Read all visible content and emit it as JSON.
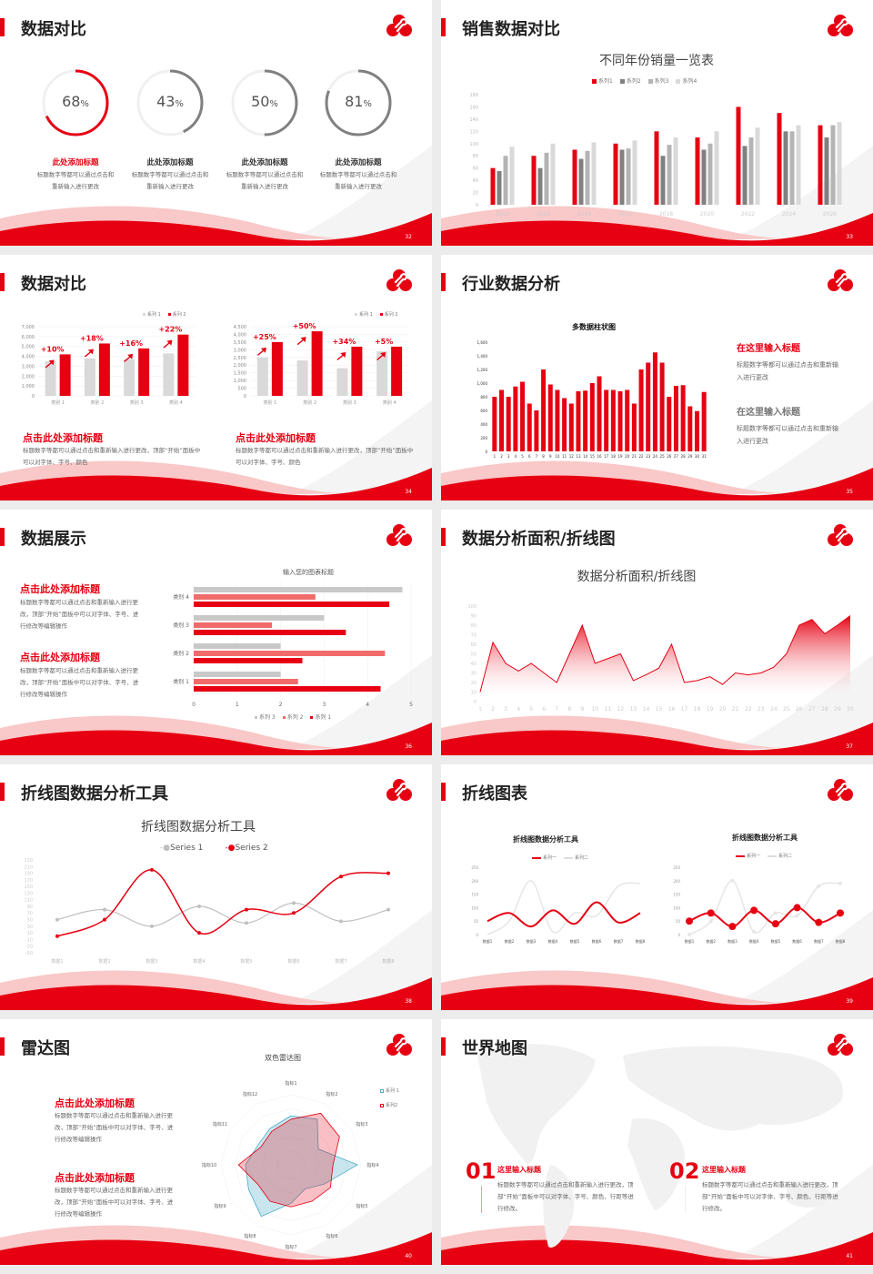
{
  "colors": {
    "red": "#e60012",
    "pink": "#f26b6b",
    "dark_gray": "#808080",
    "gray": "#b4b4b4",
    "light_gray": "#d9d9d9",
    "teal": "#4bacc6"
  },
  "slides": [
    {
      "number": "32",
      "title": "数据对比",
      "rings": [
        {
          "value": 68,
          "label": "68",
          "unit": "%",
          "heading": "此处添加标题",
          "desc": "标题数字等都可以通过点击和重新输入进行更改",
          "color": "#e60012"
        },
        {
          "value": 43,
          "label": "43",
          "unit": "%",
          "heading": "此处添加标题",
          "desc": "标题数字等都可以通过点击和重新输入进行更改",
          "color": "#808080"
        },
        {
          "value": 50,
          "label": "50",
          "unit": "%",
          "heading": "此处添加标题",
          "desc": "标题数字等都可以通过点击和重新输入进行更改",
          "color": "#808080"
        },
        {
          "value": 81,
          "label": "81",
          "unit": "%",
          "heading": "此处添加标题",
          "desc": "标题数字等都可以通过点击和重新输入进行更改",
          "color": "#808080"
        }
      ]
    },
    {
      "number": "33",
      "title": "销售数据对比"
    },
    {
      "number": "34",
      "title": "数据对比",
      "blocks": [
        {
          "heading": "点击此处添加标题",
          "desc": "标题数字等都可以通过点击和重新输入进行更改，顶部“开始”面板中可以对字体、字号、颜色"
        },
        {
          "heading": "点击此处添加标题",
          "desc": "标题数字等都可以通过点击和重新输入进行更改，顶部“开始”面板中可以对字体、字号、颜色"
        }
      ]
    },
    {
      "number": "35",
      "title": "行业数据分析",
      "blocks": [
        {
          "heading": "在这里输入标题",
          "desc": "标题数字等都可以通过点击和重新输入进行更改"
        },
        {
          "heading": "在这里输入标题",
          "desc": "标题数字等都可以通过点击和重新输入进行更改"
        }
      ]
    },
    {
      "number": "36",
      "title": "数据展示",
      "blocks": [
        {
          "heading": "点击此处添加标题",
          "desc": "标题数字等都可以通过点击和重新输入进行更改，顶部“开始”面板中可以对字体、字号、进行修改等编辑操作"
        },
        {
          "heading": "点击此处添加标题",
          "desc": "标题数字等都可以通过点击和重新输入进行更改，顶部“开始”面板中可以对字体、字号、进行修改等编辑操作"
        }
      ]
    },
    {
      "number": "37",
      "title": "数据分析面积/折线图"
    },
    {
      "number": "38",
      "title": "折线图数据分析工具"
    },
    {
      "number": "39",
      "title": "折线图表"
    },
    {
      "number": "40",
      "title": "雷达图",
      "blocks": [
        {
          "heading": "点击此处添加标题",
          "desc": "标题数字等都可以通过点击和重新输入进行更改，顶部“开始”面板中可以对字体、字号、进行修改等编辑操作"
        },
        {
          "heading": "点击此处添加标题",
          "desc": "标题数字等都可以通过点击和重新输入进行更改，顶部“开始”面板中可以对字体、字号、进行修改等编辑操作"
        }
      ]
    },
    {
      "number": "41",
      "title": "世界地图",
      "blocks": [
        {
          "num": "01",
          "heading": "这里输入标题",
          "desc": "标题数字等都可以通过点击和重新输入进行更改，顶部“开始”面板中可以对字体、字号、颜色、行距等进行修改。"
        },
        {
          "num": "02",
          "heading": "这里输入标题",
          "desc": "标题数字等都可以通过点击和重新输入进行更改，顶部“开始”面板中可以对字体、字号、颜色、行距等进行修改。"
        }
      ]
    }
  ],
  "chart_data": [
    {
      "type": "bar",
      "title": "不同年份销量一览表",
      "categories": [
        "2010",
        "2012",
        "2014",
        "2016",
        "2018",
        "2020",
        "2022",
        "2024",
        "2026"
      ],
      "series": [
        {
          "name": "系列1",
          "values": [
            60,
            80,
            90,
            100,
            120,
            110,
            160,
            150,
            130
          ]
        },
        {
          "name": "系列2",
          "values": [
            55,
            60,
            75,
            90,
            80,
            90,
            96,
            120,
            110
          ]
        },
        {
          "name": "系列3",
          "values": [
            80,
            85,
            88,
            92,
            98,
            100,
            110,
            120,
            130
          ]
        },
        {
          "name": "系列4",
          "values": [
            95,
            100,
            102,
            105,
            110,
            120,
            126,
            130,
            135
          ]
        }
      ],
      "ylim": [
        0,
        180
      ],
      "ytick_step": 20,
      "legend": "top",
      "grid": false
    },
    {
      "type": "bar",
      "categories": [
        "类别 1",
        "类别 2",
        "类别 3",
        "类别 4"
      ],
      "series": [
        {
          "name": "系列 1",
          "values": [
            3500,
            3800,
            3700,
            4300
          ]
        },
        {
          "name": "系列 2",
          "values": [
            4200,
            5300,
            4800,
            6200
          ]
        }
      ],
      "annotations": [
        "+10%",
        "+18%",
        "+16%",
        "+22%"
      ],
      "ylim": [
        0,
        7000
      ],
      "ytick_step": 1000,
      "ytick_labels": [
        "0",
        "1,000",
        "2,000",
        "3,000",
        "4,000",
        "5,000",
        "6,000",
        "7,000"
      ],
      "legend": "top-right",
      "grid": true
    },
    {
      "type": "bar",
      "categories": [
        "类别 1",
        "类别 2",
        "类别 3",
        "类别 4"
      ],
      "series": [
        {
          "name": "系列 1",
          "values": [
            2500,
            2300,
            1800,
            2900
          ]
        },
        {
          "name": "系列 2",
          "values": [
            3500,
            4200,
            3200,
            3200
          ]
        }
      ],
      "annotations": [
        "+25%",
        "+50%",
        "+34%",
        "+5%"
      ],
      "ylim": [
        0,
        4500
      ],
      "ytick_step": 500,
      "ytick_labels": [
        "0",
        "500",
        "1,000",
        "1,500",
        "2,000",
        "2,500",
        "3,000",
        "3,500",
        "4,000",
        "4,500"
      ],
      "legend": "top-right",
      "grid": true
    },
    {
      "type": "bar",
      "title": "多数据柱状图",
      "categories": [
        "1",
        "2",
        "3",
        "4",
        "5",
        "6",
        "7",
        "8",
        "9",
        "10",
        "11",
        "12",
        "13",
        "14",
        "15",
        "16",
        "17",
        "18",
        "19",
        "20",
        "21",
        "22",
        "23",
        "24",
        "25",
        "26",
        "27",
        "28",
        "29",
        "30",
        "31"
      ],
      "values": [
        800,
        900,
        800,
        950,
        1020,
        700,
        600,
        1200,
        980,
        900,
        780,
        700,
        880,
        890,
        1000,
        1100,
        900,
        900,
        880,
        900,
        700,
        1200,
        1300,
        1450,
        1300,
        800,
        960,
        970,
        660,
        590,
        870
      ],
      "ylim": [
        0,
        1600
      ],
      "ytick_step": 200,
      "ytick_labels": [
        "0",
        "200",
        "400",
        "600",
        "800",
        "1,000",
        "1,200",
        "1,400",
        "1,600"
      ],
      "grid": false
    },
    {
      "type": "bar",
      "orientation": "horizontal",
      "title": "输入您的图表标题",
      "categories": [
        "类别 1",
        "类别 2",
        "类别 3",
        "类别 4"
      ],
      "series": [
        {
          "name": "系列 1",
          "values": [
            4.3,
            2.5,
            3.5,
            4.5
          ]
        },
        {
          "name": "系列 2",
          "values": [
            2.4,
            4.4,
            1.8,
            2.8
          ]
        },
        {
          "name": "系列 3",
          "values": [
            2,
            2,
            3,
            4.8
          ]
        }
      ],
      "xlim": [
        0,
        5
      ],
      "xtick_step": 1,
      "legend": "bottom",
      "grid": true
    },
    {
      "type": "area",
      "title": "数据分析面积/折线图",
      "x": [
        1,
        2,
        3,
        4,
        5,
        6,
        7,
        8,
        9,
        10,
        11,
        12,
        13,
        14,
        15,
        16,
        17,
        18,
        19,
        20,
        21,
        22,
        23,
        24,
        25,
        26,
        27,
        28,
        29,
        30
      ],
      "values": [
        10,
        62,
        40,
        32,
        40,
        30,
        20,
        50,
        80,
        40,
        45,
        50,
        22,
        28,
        35,
        60,
        20,
        22,
        26,
        18,
        30,
        28,
        30,
        36,
        50,
        80,
        86,
        71,
        80,
        90
      ],
      "ylim": [
        0,
        100
      ],
      "ytick_step": 10,
      "grid": false
    },
    {
      "type": "line",
      "title": "折线图数据分析工具",
      "categories": [
        "数据1",
        "数据2",
        "数据3",
        "数据4",
        "数据5",
        "数据6",
        "数据7",
        "数据8"
      ],
      "series": [
        {
          "name": "Series 1",
          "values": [
            50,
            80,
            30,
            90,
            40,
            100,
            45,
            80
          ]
        },
        {
          "name": "Series 2",
          "values": [
            0,
            50,
            200,
            10,
            80,
            70,
            180,
            190
          ]
        }
      ],
      "ylim": [
        -50,
        230
      ],
      "ytick_step": 20,
      "smooth": true,
      "legend": "top"
    },
    {
      "type": "line",
      "title": "折线图数据分析工具",
      "categories": [
        "数据1",
        "数据2",
        "数据3",
        "数据4",
        "数据5",
        "数据6",
        "数据7",
        "数据8"
      ],
      "series": [
        {
          "name": "系列一",
          "values": [
            50,
            80,
            30,
            90,
            40,
            120,
            45,
            80
          ]
        },
        {
          "name": "系列二",
          "values": [
            0,
            50,
            200,
            10,
            80,
            70,
            180,
            190
          ]
        }
      ],
      "ylim": [
        0,
        250
      ],
      "ytick_step": 50,
      "smooth": true,
      "legend": "top"
    },
    {
      "type": "line",
      "title": "折线图数据分析工具",
      "categories": [
        "数据1",
        "数据2",
        "数据3",
        "数据4",
        "数据5",
        "数据6",
        "数据7",
        "数据8"
      ],
      "series": [
        {
          "name": "系列一",
          "values": [
            50,
            80,
            30,
            90,
            40,
            100,
            45,
            80
          ]
        },
        {
          "name": "系列二",
          "values": [
            0,
            50,
            200,
            10,
            80,
            70,
            180,
            190
          ]
        }
      ],
      "ylim": [
        0,
        250
      ],
      "ytick_step": 50,
      "smooth": true,
      "markers": true,
      "legend": "top"
    },
    {
      "type": "radar",
      "title": "双色雷达图",
      "categories": [
        "指标1",
        "指标2",
        "指标3",
        "指标4",
        "指标5",
        "指标6",
        "指标7",
        "指标8",
        "指标9",
        "指标10",
        "指标11",
        "指标12"
      ],
      "series": [
        {
          "name": "系列 1",
          "values": [
            70,
            75,
            45,
            95,
            55,
            40,
            55,
            85,
            70,
            65,
            55,
            60
          ]
        },
        {
          "name": "系列2",
          "values": [
            65,
            85,
            80,
            60,
            65,
            60,
            60,
            60,
            55,
            75,
            50,
            55
          ]
        }
      ],
      "rlim": [
        0,
        100
      ],
      "legend": "top-right"
    }
  ]
}
